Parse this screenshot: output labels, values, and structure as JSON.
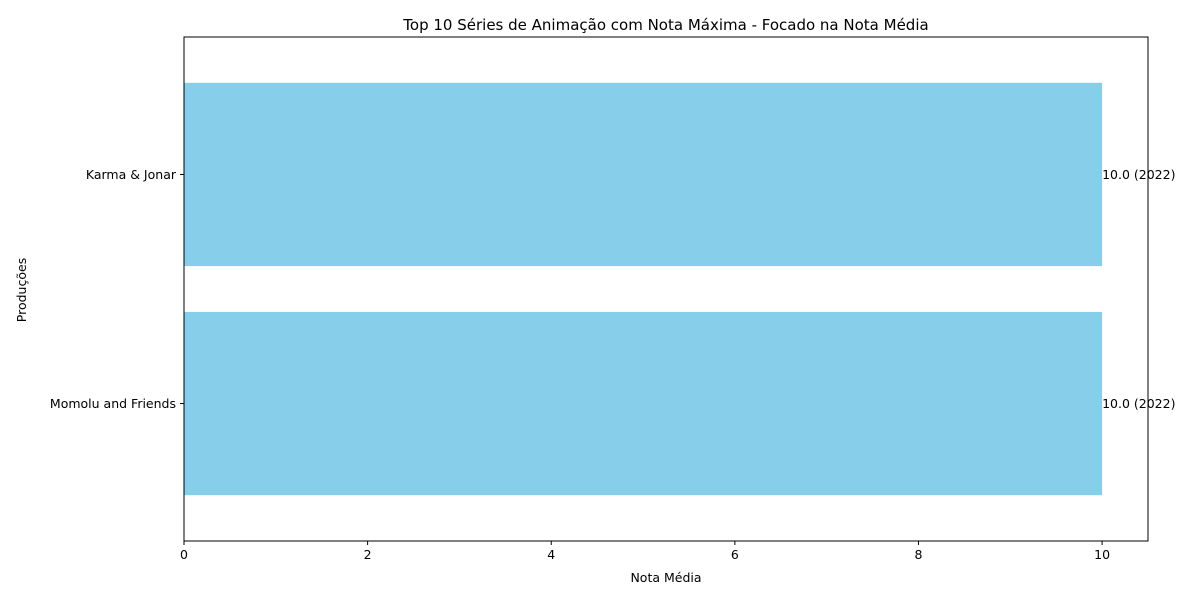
{
  "chart_data": {
    "type": "bar",
    "orientation": "horizontal",
    "title": "Top 10 Séries de Animação com Nota Máxima - Focado na Nota Média",
    "xlabel": "Nota Média",
    "ylabel": "Produções",
    "categories": [
      "Karma & Jonar",
      "Momolu and Friends"
    ],
    "values": [
      10.0,
      10.0
    ],
    "data_labels": [
      "10.0 (2022)",
      "10.0 (2022)"
    ],
    "xlim": [
      0,
      10.5
    ],
    "xticks": [
      0,
      2,
      4,
      6,
      8,
      10
    ],
    "grid": false,
    "legend": "none",
    "bar_color": "#87ceeb"
  }
}
